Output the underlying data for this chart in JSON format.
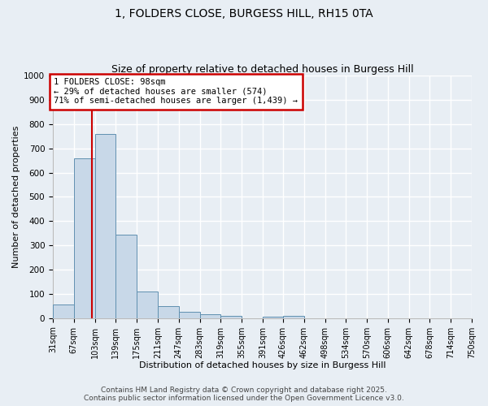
{
  "title1": "1, FOLDERS CLOSE, BURGESS HILL, RH15 0TA",
  "title2": "Size of property relative to detached houses in Burgess Hill",
  "xlabel": "Distribution of detached houses by size in Burgess Hill",
  "ylabel": "Number of detached properties",
  "bin_edges": [
    31,
    67,
    103,
    139,
    175,
    211,
    247,
    283,
    319,
    355,
    391,
    426,
    462,
    498,
    534,
    570,
    606,
    642,
    678,
    714,
    750
  ],
  "bar_heights": [
    55,
    660,
    760,
    345,
    110,
    50,
    27,
    15,
    10,
    0,
    7,
    10,
    0,
    0,
    0,
    0,
    0,
    0,
    0,
    0
  ],
  "bar_color": "#c8d8e8",
  "bar_edge_color": "#6090b0",
  "red_line_x": 98,
  "annotation_text": "1 FOLDERS CLOSE: 98sqm\n← 29% of detached houses are smaller (574)\n71% of semi-detached houses are larger (1,439) →",
  "annotation_box_facecolor": "#ffffff",
  "annotation_edge_color": "#cc0000",
  "ylim": [
    0,
    1000
  ],
  "yticks": [
    0,
    100,
    200,
    300,
    400,
    500,
    600,
    700,
    800,
    900,
    1000
  ],
  "tick_labels": [
    "31sqm",
    "67sqm",
    "103sqm",
    "139sqm",
    "175sqm",
    "211sqm",
    "247sqm",
    "283sqm",
    "319sqm",
    "355sqm",
    "391sqm",
    "426sqm",
    "462sqm",
    "498sqm",
    "534sqm",
    "570sqm",
    "606sqm",
    "642sqm",
    "678sqm",
    "714sqm",
    "750sqm"
  ],
  "footer1": "Contains HM Land Registry data © Crown copyright and database right 2025.",
  "footer2": "Contains public sector information licensed under the Open Government Licence v3.0.",
  "background_color": "#e8eef4",
  "plot_background": "#e8eef4",
  "grid_color": "#ffffff",
  "red_line_color": "#cc0000",
  "title1_fontsize": 10,
  "title2_fontsize": 9,
  "xlabel_fontsize": 8,
  "ylabel_fontsize": 8,
  "tick_fontsize": 7,
  "annotation_fontsize": 7.5,
  "footer_fontsize": 6.5
}
